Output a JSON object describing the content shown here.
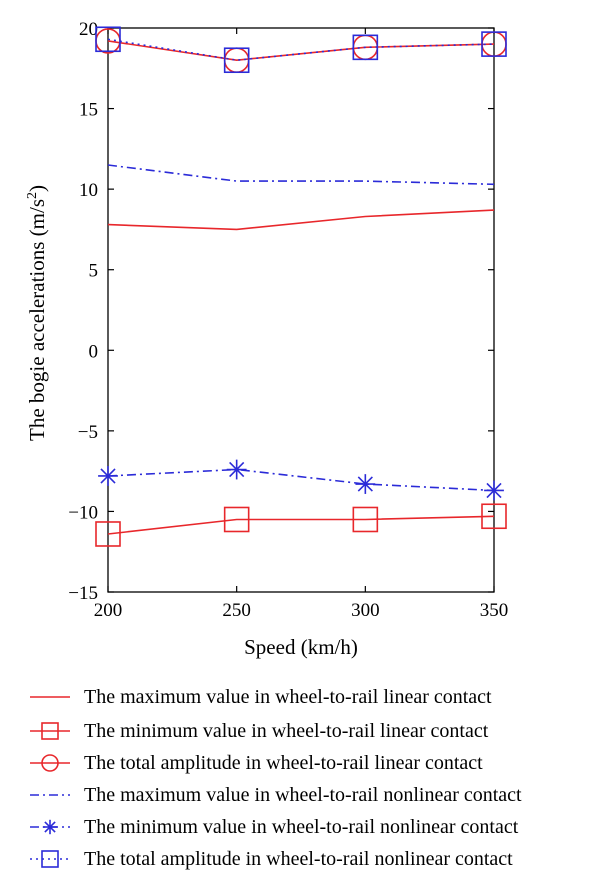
{
  "chart_data": {
    "type": "line",
    "xlabel": "Speed (km/h)",
    "ylabel_main": "The bogie accelerations (m/s",
    "ylabel_sup": "2",
    "ylabel_close": ")",
    "x": [
      200,
      250,
      300,
      350
    ],
    "xlim": [
      200,
      350
    ],
    "ylim": [
      -15,
      20
    ],
    "xticks": [
      200,
      250,
      300,
      350
    ],
    "yticks": [
      -15,
      -10,
      -5,
      0,
      5,
      10,
      15,
      20
    ],
    "ytick_labels": [
      "−15",
      "−10",
      "−5",
      "0",
      "5",
      "10",
      "15",
      "20"
    ],
    "xtick_labels": [
      "200",
      "250",
      "300",
      "350"
    ],
    "grid": false,
    "legend_position": "below",
    "series": [
      {
        "name": "The maximum value in wheel-to-rail linear contact",
        "values": [
          7.8,
          7.5,
          8.3,
          8.7
        ],
        "color": "#e8272b",
        "dash": "solid",
        "marker": "none"
      },
      {
        "name": "The minimum value in wheel-to-rail linear contact",
        "values": [
          -11.4,
          -10.5,
          -10.5,
          -10.3
        ],
        "color": "#e8272b",
        "dash": "solid",
        "marker": "square"
      },
      {
        "name": "The total amplitude in wheel-to-rail linear contact",
        "values": [
          19.2,
          18.0,
          18.8,
          19.0
        ],
        "color": "#e8272b",
        "dash": "solid",
        "marker": "circle"
      },
      {
        "name": "The maximum value in wheel-to-rail nonlinear contact",
        "values": [
          11.5,
          10.5,
          10.5,
          10.3
        ],
        "color": "#2b2bd8",
        "dash": "dashdot",
        "marker": "none"
      },
      {
        "name": "The minimum value in wheel-to-rail nonlinear contact",
        "values": [
          -7.8,
          -7.4,
          -8.3,
          -8.7
        ],
        "color": "#2b2bd8",
        "dash": "dashdot",
        "marker": "asterisk"
      },
      {
        "name": "The total amplitude in wheel-to-rail nonlinear contact",
        "values": [
          19.3,
          18.0,
          18.8,
          19.0
        ],
        "color": "#2b2bd8",
        "dash": "dotted",
        "marker": "square"
      }
    ]
  }
}
